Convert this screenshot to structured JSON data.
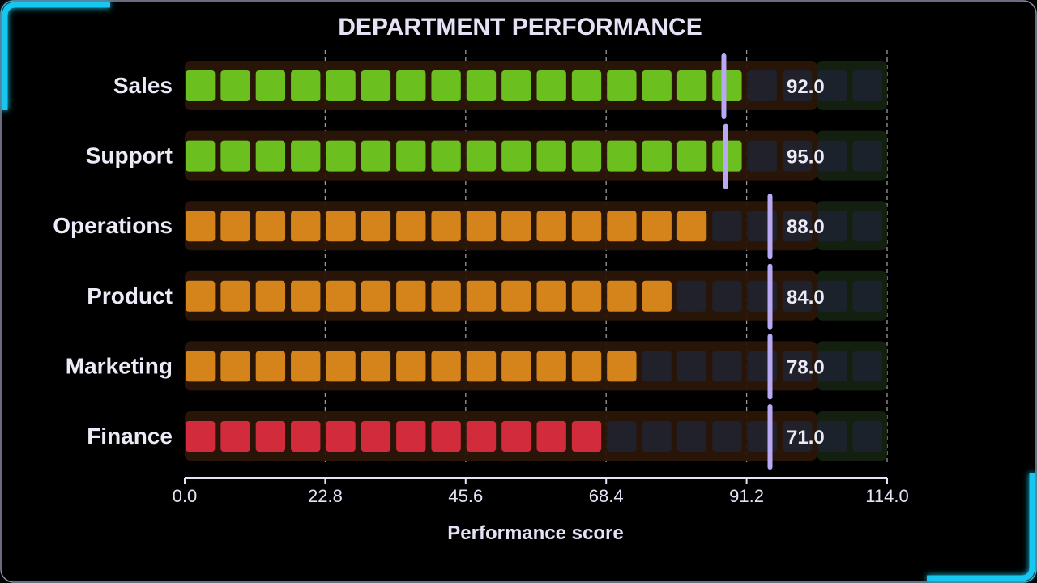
{
  "chart_data": {
    "type": "bar",
    "title": "DEPARTMENT PERFORMANCE",
    "xlabel": "Performance score",
    "ylabel": "",
    "xlim": [
      0,
      114
    ],
    "x_ticks": [
      "0.0",
      "22.8",
      "45.6",
      "68.4",
      "91.2",
      "114.0"
    ],
    "grid": "vertical dashed",
    "categories": [
      "Sales",
      "Support",
      "Operations",
      "Product",
      "Marketing",
      "Finance"
    ],
    "values": [
      92.0,
      95.0,
      88.0,
      84.0,
      78.0,
      71.0
    ],
    "value_labels": [
      "92.0",
      "95.0",
      "88.0",
      "84.0",
      "78.0",
      "71.0"
    ],
    "targets": [
      87.5,
      87.8,
      95.0,
      95.0,
      95.0,
      95.0
    ],
    "bands": [
      {
        "from": 0,
        "to": 102.6,
        "color": "#2a1608"
      },
      {
        "from": 102.6,
        "to": 114,
        "color": "#142211"
      }
    ],
    "segment_size": 5.7,
    "colors": {
      "good": "#6bbf1f",
      "mid": "#d4841a",
      "low": "#d22b3c",
      "empty": "#1e2330",
      "target": "#b9a9f5",
      "accent": "#16c8ef",
      "frame": "#8a8fa8"
    },
    "bar_status": [
      "good",
      "good",
      "mid",
      "mid",
      "mid",
      "low"
    ]
  }
}
